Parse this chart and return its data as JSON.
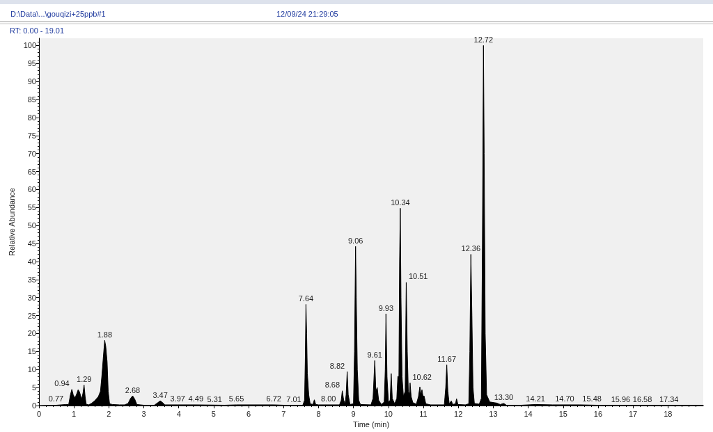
{
  "chart_data": {
    "type": "area",
    "title": "D:\\Data\\...\\gouqizi+25ppb#1",
    "subtitle": "12/09/24 21:29:05",
    "xlabel": "Time (min)",
    "ylabel": "Relative Abundance",
    "xlim": [
      0,
      19.01
    ],
    "xticks": [
      0,
      1,
      2,
      3,
      4,
      5,
      6,
      7,
      8,
      9,
      10,
      11,
      12,
      13,
      14,
      15,
      16,
      17,
      18
    ],
    "ylim": [
      0,
      102
    ],
    "yticks": [
      0,
      5,
      10,
      15,
      20,
      25,
      30,
      35,
      40,
      45,
      50,
      55,
      60,
      65,
      70,
      75,
      80,
      85,
      90,
      95,
      100
    ],
    "x": [
      0,
      0.5,
      0.77,
      0.85,
      0.9,
      0.94,
      0.98,
      1.03,
      1.09,
      1.12,
      1.16,
      1.22,
      1.26,
      1.29,
      1.32,
      1.35,
      1.42,
      1.5,
      1.6,
      1.7,
      1.76,
      1.8,
      1.85,
      1.88,
      1.91,
      1.95,
      1.98,
      2.02,
      2.1,
      2.3,
      2.45,
      2.55,
      2.62,
      2.68,
      2.74,
      2.8,
      3.0,
      3.3,
      3.4,
      3.47,
      3.53,
      3.6,
      3.97,
      4.49,
      5.31,
      5.65,
      6.72,
      7.01,
      7.55,
      7.6,
      7.62,
      7.64,
      7.66,
      7.68,
      7.72,
      7.76,
      7.84,
      7.88,
      7.92,
      8.0,
      8.6,
      8.65,
      8.68,
      8.72,
      8.76,
      8.79,
      8.82,
      8.85,
      8.9,
      9.0,
      9.03,
      9.06,
      9.08,
      9.11,
      9.15,
      9.2,
      9.5,
      9.56,
      9.61,
      9.64,
      9.68,
      9.72,
      9.8,
      9.88,
      9.91,
      9.93,
      9.96,
      10.0,
      10.05,
      10.08,
      10.11,
      10.18,
      10.24,
      10.27,
      10.3,
      10.32,
      10.34,
      10.36,
      10.39,
      10.43,
      10.48,
      10.51,
      10.54,
      10.57,
      10.6,
      10.62,
      10.65,
      10.7,
      10.8,
      10.86,
      10.9,
      10.93,
      10.96,
      10.99,
      11.02,
      11.07,
      11.2,
      11.6,
      11.64,
      11.67,
      11.7,
      11.74,
      11.8,
      11.84,
      11.92,
      11.95,
      11.99,
      12.2,
      12.3,
      12.33,
      12.36,
      12.39,
      12.42,
      12.46,
      12.6,
      12.66,
      12.69,
      12.72,
      12.74,
      12.77,
      12.81,
      12.9,
      13.1,
      13.2,
      13.3,
      13.38,
      13.8,
      14.21,
      14.7,
      15.48,
      15.96,
      16.58,
      17.34,
      18.0,
      19.01
    ],
    "series": [
      {
        "color": "#000000",
        "values": [
          0,
          0.1,
          0.3,
          0.3,
          3.0,
          4.5,
          3.0,
          2.1,
          3.5,
          4.4,
          3.8,
          1.7,
          3.5,
          5.7,
          2.5,
          0.4,
          0.2,
          0.6,
          1.4,
          2.5,
          4.0,
          8.3,
          14.5,
          18.1,
          16.5,
          12.1,
          4.0,
          0.5,
          0.3,
          0.2,
          0.2,
          0.6,
          2.0,
          2.7,
          1.8,
          0.3,
          0.1,
          0.1,
          0.8,
          1.3,
          0.9,
          0.2,
          0.2,
          0.2,
          0.1,
          0.2,
          0.2,
          0.1,
          0.1,
          1.5,
          12,
          28.1,
          20,
          9,
          3,
          0.5,
          0.3,
          1.6,
          0.3,
          0.2,
          0.2,
          1.5,
          4.1,
          1.5,
          0.5,
          3,
          9.4,
          3,
          0.3,
          0.5,
          15,
          44.2,
          30,
          10,
          1.5,
          0.3,
          0.2,
          2,
          12.5,
          4,
          5.0,
          1.5,
          0.3,
          1.0,
          10,
          25.5,
          8,
          1.0,
          1.5,
          8.9,
          2,
          0.5,
          2,
          8.1,
          8,
          40,
          54.8,
          30,
          8,
          2.5,
          4,
          34.2,
          15,
          4,
          3,
          6.3,
          2.5,
          0.8,
          0.4,
          2.5,
          5.2,
          3,
          4.4,
          2.5,
          2.7,
          0.5,
          0.2,
          0.2,
          5,
          11.3,
          4,
          0.5,
          1.3,
          0.3,
          0.5,
          1.9,
          0.3,
          0.2,
          0.5,
          15,
          42,
          25,
          5,
          0.6,
          0.4,
          2,
          45,
          100,
          70,
          20,
          3,
          1.0,
          0.7,
          0.3,
          0.6,
          0.1,
          0.1,
          0.3,
          0.2,
          0.2,
          0.1,
          0.1,
          0.1,
          0.1,
          0.1
        ]
      }
    ],
    "annotations": [
      "RT: 0.00 - 19.01",
      {
        "text": "0.77",
        "x": 0.77,
        "y": 0.3
      },
      {
        "text": "0.94",
        "x": 0.94,
        "y": 4.5
      },
      {
        "text": "1.29",
        "x": 1.29,
        "y": 5.7
      },
      {
        "text": "1.88",
        "x": 1.88,
        "y": 18.1
      },
      {
        "text": "2.68",
        "x": 2.68,
        "y": 2.7
      },
      {
        "text": "3.47",
        "x": 3.47,
        "y": 1.3
      },
      {
        "text": "3.97",
        "x": 3.97,
        "y": 0.2
      },
      {
        "text": "4.49",
        "x": 4.49,
        "y": 0.2
      },
      {
        "text": "5.31",
        "x": 5.31,
        "y": 0.1
      },
      {
        "text": "5.65",
        "x": 5.65,
        "y": 0.2
      },
      {
        "text": "6.72",
        "x": 6.72,
        "y": 0.2
      },
      {
        "text": "7.01",
        "x": 7.01,
        "y": 0.1
      },
      {
        "text": "7.64",
        "x": 7.64,
        "y": 28.1
      },
      {
        "text": "8.00",
        "x": 8.0,
        "y": 0.2
      },
      {
        "text": "8.68",
        "x": 8.68,
        "y": 4.1
      },
      {
        "text": "8.82",
        "x": 8.82,
        "y": 9.4
      },
      {
        "text": "9.06",
        "x": 9.06,
        "y": 44.2
      },
      {
        "text": "9.61",
        "x": 9.61,
        "y": 12.5
      },
      {
        "text": "9.93",
        "x": 9.93,
        "y": 25.5
      },
      {
        "text": "10.34",
        "x": 10.34,
        "y": 54.8
      },
      {
        "text": "10.51",
        "x": 10.51,
        "y": 34.2
      },
      {
        "text": "10.62",
        "x": 10.62,
        "y": 6.3
      },
      {
        "text": "11.67",
        "x": 11.67,
        "y": 11.3
      },
      {
        "text": "12.36",
        "x": 12.36,
        "y": 42
      },
      {
        "text": "12.72",
        "x": 12.72,
        "y": 100
      },
      {
        "text": "13.30",
        "x": 13.3,
        "y": 0.6
      },
      {
        "text": "14.21",
        "x": 14.21,
        "y": 0.3
      },
      {
        "text": "14.70",
        "x": 14.7,
        "y": 0.2
      },
      {
        "text": "15.48",
        "x": 15.48,
        "y": 0.2
      },
      {
        "text": "15.96",
        "x": 15.96,
        "y": 0.1
      },
      {
        "text": "16.58",
        "x": 16.58,
        "y": 0.1
      },
      {
        "text": "17.34",
        "x": 17.34,
        "y": 0.1
      }
    ]
  }
}
